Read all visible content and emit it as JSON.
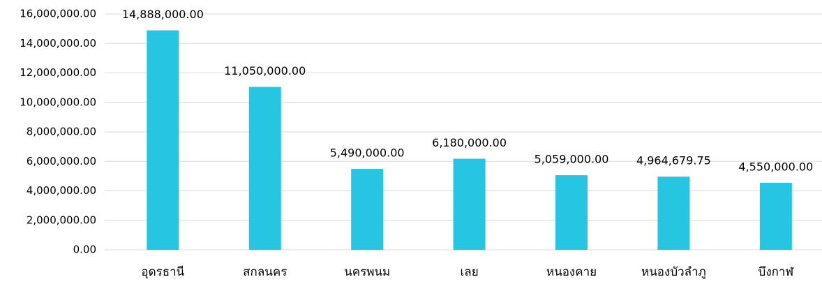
{
  "chart_data": {
    "type": "bar",
    "categories": [
      "อุดรธานี",
      "สกลนคร",
      "นครพนม",
      "เลย",
      "หนองคาย",
      "หนองบัวลำภู",
      "บึงกาฬ"
    ],
    "values": [
      14888000,
      11050000,
      5490000,
      6180000,
      5059000,
      4964679.75,
      4550000
    ],
    "value_labels": [
      "14,888,000.00",
      "11,050,000.00",
      "5,490,000.00",
      "6,180,000.00",
      "5,059,000.00",
      "4,964,679.75",
      "4,550,000.00"
    ],
    "color": "#26c6e3",
    "ylim": [
      0,
      16000000
    ],
    "yticks": [
      {
        "value": 0,
        "label": "0.00"
      },
      {
        "value": 2000000,
        "label": "2,000,000.00"
      },
      {
        "value": 4000000,
        "label": "4,000,000.00"
      },
      {
        "value": 6000000,
        "label": "6,000,000.00"
      },
      {
        "value": 8000000,
        "label": "8,000,000.00"
      },
      {
        "value": 10000000,
        "label": "10,000,000.00"
      },
      {
        "value": 12000000,
        "label": "12,000,000.00"
      },
      {
        "value": 14000000,
        "label": "14,000,000.00"
      },
      {
        "value": 16000000,
        "label": "16,000,000.00"
      }
    ],
    "grid": true
  }
}
